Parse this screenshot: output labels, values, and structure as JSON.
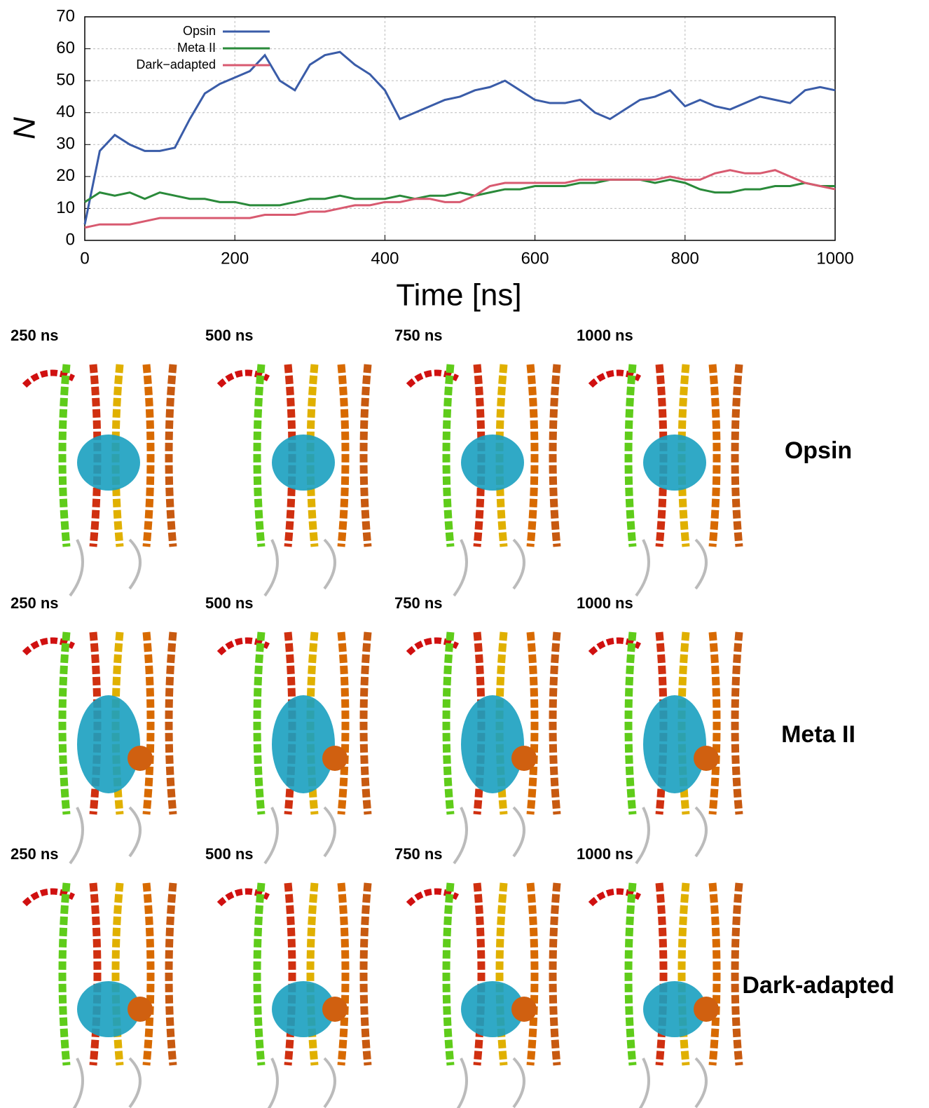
{
  "chart_data": {
    "type": "line",
    "xlabel": "Time [ns]",
    "ylabel": "N",
    "x": [
      0,
      20,
      40,
      60,
      80,
      100,
      120,
      140,
      160,
      180,
      200,
      220,
      240,
      260,
      280,
      300,
      320,
      340,
      360,
      380,
      400,
      420,
      440,
      460,
      480,
      500,
      520,
      540,
      560,
      580,
      600,
      620,
      640,
      660,
      680,
      700,
      720,
      740,
      760,
      780,
      800,
      820,
      840,
      860,
      880,
      900,
      920,
      940,
      960,
      980,
      1000
    ],
    "series": [
      {
        "name": "Opsin",
        "color": "#3a5ca8",
        "values": [
          5,
          28,
          33,
          30,
          28,
          28,
          29,
          38,
          46,
          49,
          51,
          53,
          58,
          50,
          47,
          55,
          58,
          59,
          55,
          52,
          47,
          38,
          40,
          42,
          44,
          45,
          47,
          48,
          50,
          47,
          44,
          43,
          43,
          44,
          40,
          38,
          41,
          44,
          45,
          47,
          42,
          44,
          42,
          41,
          43,
          45,
          44,
          43,
          47,
          48,
          47
        ]
      },
      {
        "name": "Meta II",
        "color": "#2a8a3a",
        "values": [
          12,
          15,
          14,
          15,
          13,
          15,
          14,
          13,
          13,
          12,
          12,
          11,
          11,
          11,
          12,
          13,
          13,
          14,
          13,
          13,
          13,
          14,
          13,
          14,
          14,
          15,
          14,
          15,
          16,
          16,
          17,
          17,
          17,
          18,
          18,
          19,
          19,
          19,
          18,
          19,
          18,
          16,
          15,
          15,
          16,
          16,
          17,
          17,
          18,
          17,
          17
        ]
      },
      {
        "name": "Dark−adapted",
        "color": "#d85a70",
        "values": [
          4,
          5,
          5,
          5,
          6,
          7,
          7,
          7,
          7,
          7,
          7,
          7,
          8,
          8,
          8,
          9,
          9,
          10,
          11,
          11,
          12,
          12,
          13,
          13,
          12,
          12,
          14,
          17,
          18,
          18,
          18,
          18,
          18,
          19,
          19,
          19,
          19,
          19,
          19,
          20,
          19,
          19,
          21,
          22,
          21,
          21,
          22,
          20,
          18,
          17,
          16
        ]
      }
    ],
    "xlim": [
      0,
      1000
    ],
    "xticks": [
      0,
      200,
      400,
      600,
      800,
      1000
    ],
    "ylim": [
      0,
      70
    ],
    "yticks": [
      0,
      10,
      20,
      30,
      40,
      50,
      60,
      70
    ],
    "grid": true,
    "legend": "top-left"
  },
  "panels": {
    "times": [
      "250 ns",
      "500 ns",
      "750 ns",
      "1000 ns"
    ],
    "rows": [
      "Opsin",
      "Meta II",
      "Dark-adapted"
    ]
  }
}
